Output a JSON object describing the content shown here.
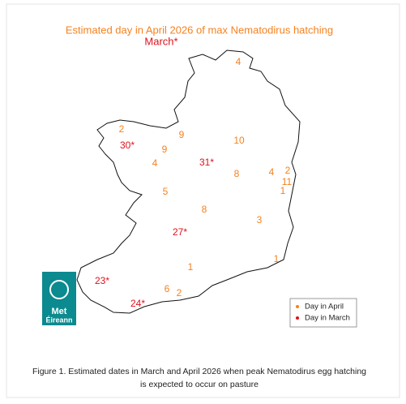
{
  "title": "Estimated day in April 2026 of max Nematodirus hatching",
  "subtitle": "March*",
  "april_days": [
    "4",
    "2",
    "9",
    "10",
    "9",
    "4",
    "8",
    "4",
    "2",
    "11",
    "1",
    "5",
    "8",
    "3",
    "1",
    "1",
    "6",
    "2"
  ],
  "march_days": [
    "30*",
    "31*",
    "27*",
    "23*",
    "24*"
  ],
  "legend": {
    "items": [
      {
        "label": "Day in April",
        "color": "#f58220"
      },
      {
        "label": "Day in March",
        "color": "#e0101b"
      }
    ]
  },
  "logo": {
    "line1": "Met",
    "line2": "Éireann"
  },
  "caption": [
    "Figure 1. Estimated dates in March and April 2026 when peak Nematodirus egg hatching",
    "is expected to occur on pasture"
  ]
}
